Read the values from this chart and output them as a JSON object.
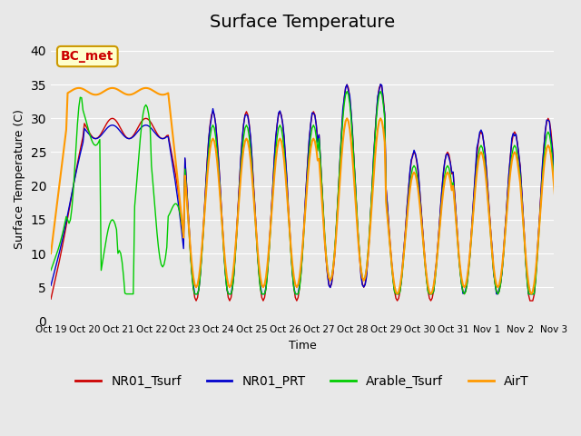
{
  "title": "Surface Temperature",
  "ylabel": "Surface Temperature (C)",
  "xlabel": "Time",
  "ylim": [
    0,
    42
  ],
  "yticks": [
    0,
    5,
    10,
    15,
    20,
    25,
    30,
    35,
    40
  ],
  "xtick_labels": [
    "Oct 19",
    "Oct 20",
    "Oct 21",
    "Oct 22",
    "Oct 23",
    "Oct 24",
    "Oct 25",
    "Oct 26",
    "Oct 27",
    "Oct 28",
    "Oct 29",
    "Oct 30",
    "Oct 31",
    "Nov 1",
    "Nov 2",
    "Nov 3"
  ],
  "colors": {
    "NR01_Tsurf": "#cc0000",
    "NR01_PRT": "#0000cc",
    "Arable_Tsurf": "#00cc00",
    "AirT": "#ff9900"
  },
  "annotation_text": "BC_met",
  "annotation_color": "#cc0000",
  "bg_color": "#e8e8e8",
  "title_fontsize": 14,
  "legend_fontsize": 10
}
